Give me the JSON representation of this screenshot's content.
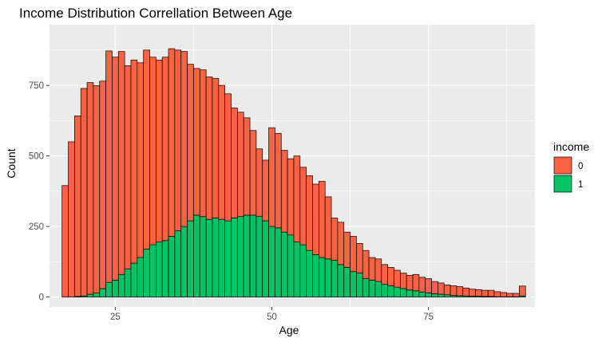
{
  "chart_data": {
    "type": "bar",
    "title": "Income Distribution Correllation Between  Age",
    "xlabel": "Age",
    "ylabel": "Count",
    "xlim": [
      14.5,
      92
    ],
    "ylim": [
      -35,
      965
    ],
    "x_ticks": [
      25,
      50,
      75
    ],
    "y_ticks": [
      0,
      250,
      500,
      750
    ],
    "stacked": true,
    "grid": true,
    "legend": {
      "title": "income",
      "position": "right"
    },
    "bin_width": 1,
    "x": [
      17,
      18,
      19,
      20,
      21,
      22,
      23,
      24,
      25,
      26,
      27,
      28,
      29,
      30,
      31,
      32,
      33,
      34,
      35,
      36,
      37,
      38,
      39,
      40,
      41,
      42,
      43,
      44,
      45,
      46,
      47,
      48,
      49,
      50,
      51,
      52,
      53,
      54,
      55,
      56,
      57,
      58,
      59,
      60,
      61,
      62,
      63,
      64,
      65,
      66,
      67,
      68,
      69,
      70,
      71,
      72,
      73,
      74,
      75,
      76,
      77,
      78,
      79,
      80,
      81,
      82,
      83,
      84,
      85,
      86,
      87,
      88,
      89,
      90
    ],
    "series": [
      {
        "name": "1",
        "color": "#00C465",
        "values": [
          0,
          0,
          2,
          4,
          10,
          14,
          30,
          52,
          60,
          80,
          100,
          120,
          140,
          170,
          185,
          195,
          200,
          215,
          235,
          250,
          270,
          290,
          285,
          275,
          280,
          275,
          270,
          280,
          285,
          290,
          290,
          285,
          270,
          250,
          245,
          230,
          220,
          195,
          185,
          165,
          150,
          140,
          135,
          130,
          115,
          105,
          90,
          85,
          65,
          60,
          55,
          45,
          40,
          35,
          30,
          25,
          22,
          18,
          15,
          12,
          10,
          8,
          6,
          5,
          4,
          3,
          3,
          2,
          2,
          1,
          1,
          1,
          1,
          4
        ]
      },
      {
        "name": "0",
        "color": "#FA6244",
        "values": [
          395,
          550,
          640,
          735,
          750,
          735,
          735,
          820,
          790,
          790,
          720,
          720,
          690,
          705,
          665,
          645,
          650,
          665,
          640,
          620,
          555,
          520,
          520,
          505,
          495,
          475,
          450,
          390,
          370,
          345,
          300,
          240,
          215,
          350,
          335,
          290,
          270,
          305,
          275,
          265,
          250,
          270,
          220,
          150,
          150,
          125,
          125,
          105,
          100,
          80,
          80,
          70,
          65,
          60,
          55,
          52,
          58,
          52,
          50,
          43,
          40,
          35,
          34,
          32,
          28,
          25,
          23,
          22,
          22,
          18,
          15,
          12,
          12,
          35
        ]
      }
    ]
  }
}
